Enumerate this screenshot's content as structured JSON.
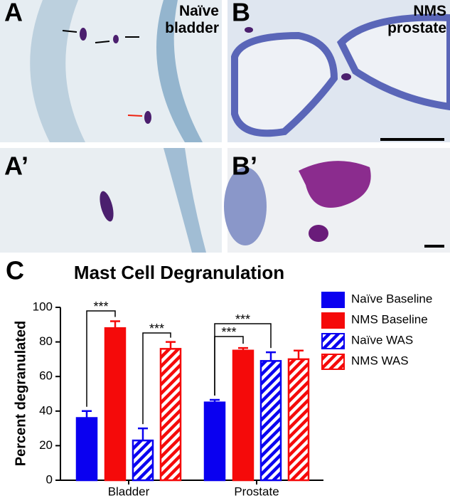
{
  "panels": {
    "a": {
      "label": "A",
      "caption": "Naïve\nbladder"
    },
    "b": {
      "label": "B",
      "caption": "NMS\nprostate"
    },
    "a2": {
      "label": "A’"
    },
    "b2": {
      "label": "B’"
    },
    "c": {
      "label": "C"
    }
  },
  "chart_data": {
    "type": "bar",
    "title": "Mast Cell Degranulation",
    "y_label": "Percent degranulated",
    "categories": [
      "Bladder",
      "Prostate"
    ],
    "series": [
      {
        "name": "Naïve Baseline",
        "color": "#0a00f0",
        "hatch": false,
        "values": [
          36,
          45
        ],
        "errors": [
          4,
          1.5
        ]
      },
      {
        "name": "NMS Baseline",
        "color": "#f50a0a",
        "hatch": false,
        "values": [
          88,
          75
        ],
        "errors": [
          4,
          1.5
        ]
      },
      {
        "name": "Naïve WAS",
        "color": "#0a00f0",
        "hatch": true,
        "values": [
          23,
          69
        ],
        "errors": [
          7,
          5
        ]
      },
      {
        "name": "NMS WAS",
        "color": "#f50a0a",
        "hatch": true,
        "values": [
          76,
          70
        ],
        "errors": [
          4,
          5
        ]
      }
    ],
    "ylim": [
      0,
      100
    ],
    "yticks": [
      0,
      20,
      40,
      60,
      80,
      100
    ],
    "annotations": [
      "***",
      "***",
      "***",
      "***"
    ]
  }
}
